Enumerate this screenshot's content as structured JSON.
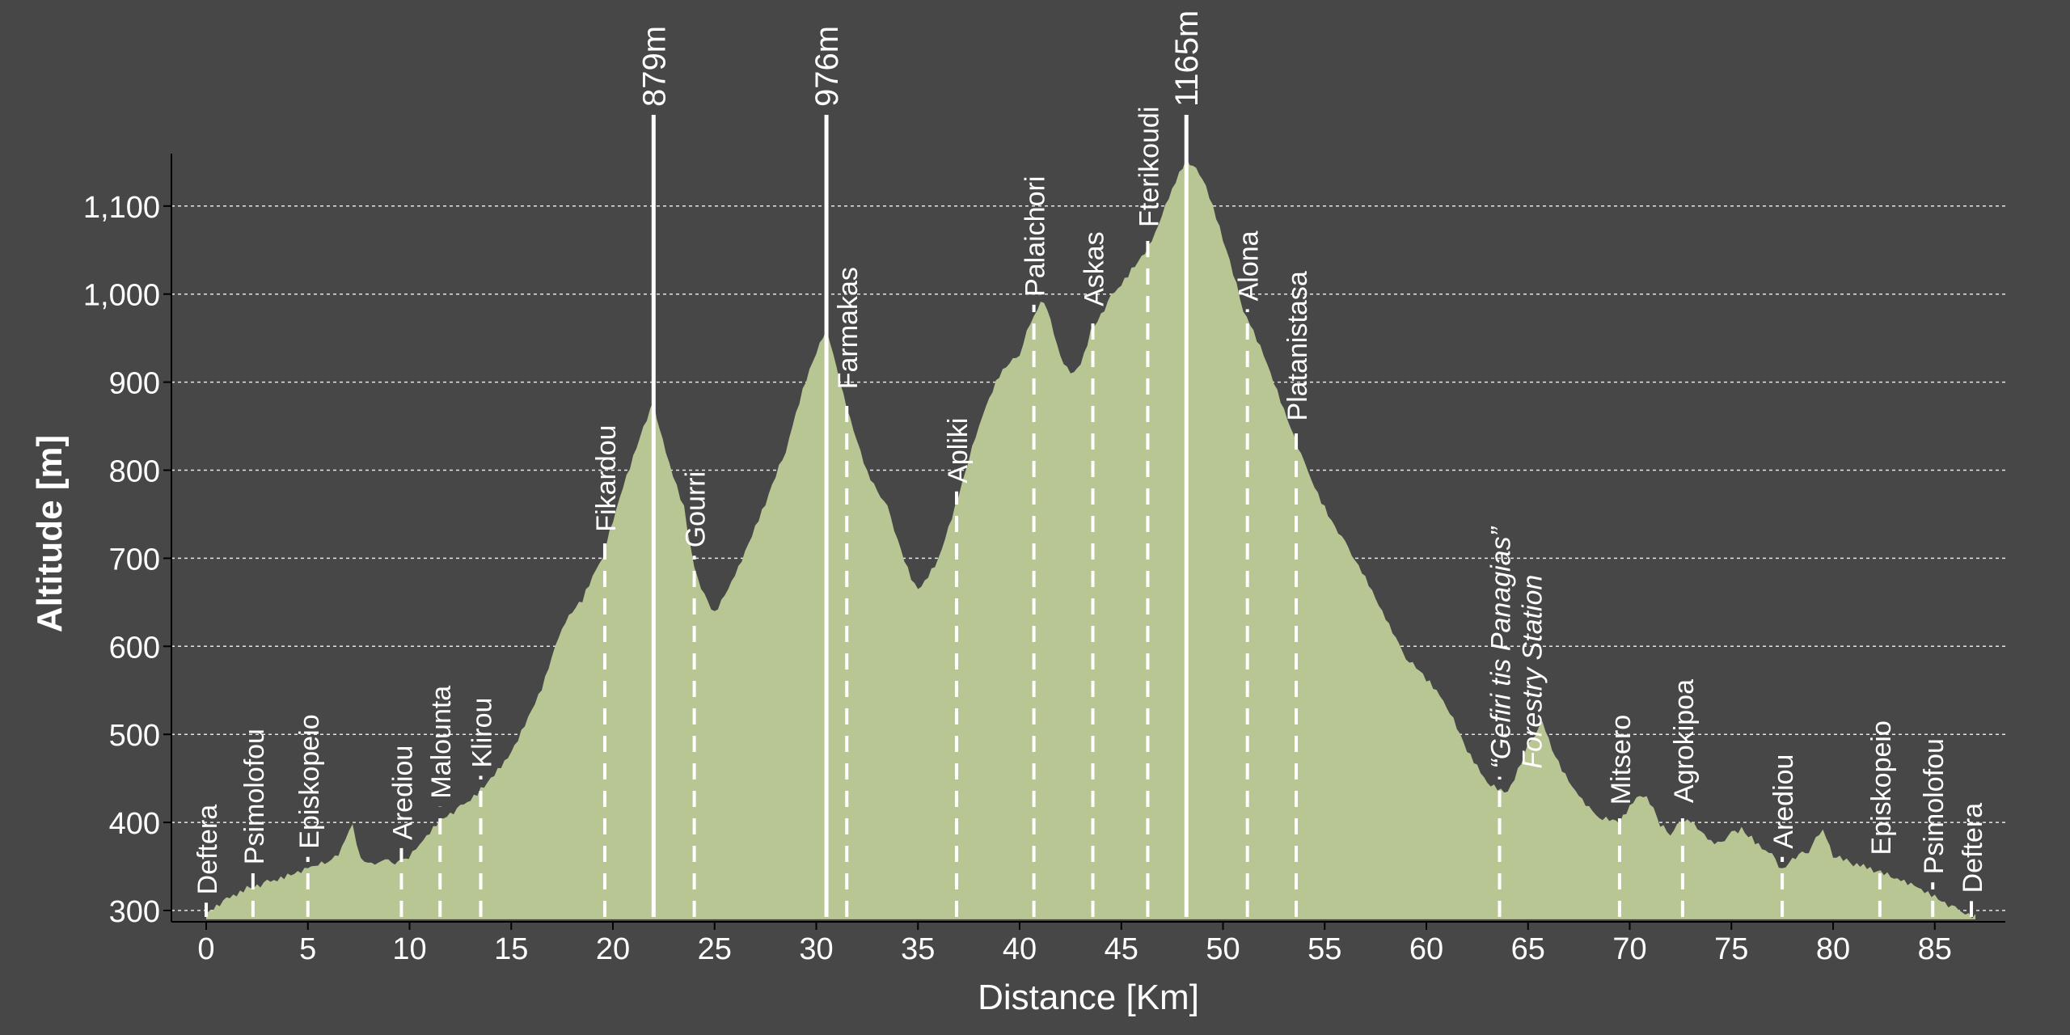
{
  "chart_data": {
    "type": "area",
    "xlabel": "Distance [Km]",
    "ylabel": "Altitude [m]",
    "xlim": [
      -1.5,
      89
    ],
    "ylim": [
      290,
      1160
    ],
    "x_ticks": [
      0,
      5,
      10,
      15,
      20,
      25,
      30,
      35,
      40,
      45,
      50,
      55,
      60,
      65,
      70,
      75,
      80,
      85
    ],
    "x_tick_labels": [
      "0",
      "5",
      "10",
      "15",
      "20",
      "25",
      "30",
      "35",
      "40",
      "45",
      "50",
      "55",
      "60",
      "65",
      "70",
      "75",
      "80",
      "85"
    ],
    "y_ticks": [
      300,
      400,
      500,
      600,
      700,
      800,
      900,
      1000,
      1100
    ],
    "y_tick_labels": [
      "300",
      "400",
      "500",
      "600",
      "700",
      "800",
      "900",
      "1,000",
      "1,100"
    ],
    "grid": "horizontal dotted",
    "colors": {
      "background": "#474747",
      "fill": "#b7c693",
      "grid": "#e6e6e6",
      "marker": "#ffffff"
    },
    "series": [
      {
        "x": [
          0,
          1,
          2,
          3,
          4,
          5,
          6,
          6.5,
          7.2,
          7.6,
          8.3,
          8.8,
          9.6,
          10.5,
          11.5,
          12.5,
          13.5,
          15,
          16.5,
          17.5,
          18.5,
          19.5,
          20.5,
          21.5,
          22,
          22.6,
          23.5,
          24,
          24.5,
          25,
          26,
          27.5,
          28.5,
          29.5,
          30.5,
          31.5,
          32.5,
          33.5,
          34.5,
          35,
          36,
          37,
          38,
          39,
          40,
          40.7,
          41.2,
          42,
          42.5,
          43,
          43.5,
          44.5,
          45.5,
          46.5,
          47.5,
          48.2,
          49,
          50,
          51,
          52,
          53,
          54,
          55,
          56,
          57,
          58,
          59,
          60,
          61,
          62,
          63,
          64,
          65,
          65.7,
          66.5,
          67.5,
          68.5,
          69.5,
          70.5,
          71,
          71.5,
          72,
          72.5,
          73,
          73.5,
          74,
          74.5,
          75,
          75.5,
          76,
          77,
          77.5,
          78,
          78.8,
          79.5,
          80,
          81,
          82,
          83,
          84,
          85,
          86,
          87
        ],
        "y": [
          296,
          315,
          328,
          335,
          342,
          348,
          355,
          362,
          398,
          360,
          352,
          358,
          358,
          375,
          405,
          420,
          440,
          480,
          550,
          620,
          650,
          700,
          780,
          850,
          879,
          820,
          760,
          690,
          660,
          640,
          680,
          760,
          820,
          900,
          960,
          870,
          800,
          760,
          690,
          665,
          700,
          770,
          850,
          905,
          930,
          975,
          990,
          930,
          910,
          920,
          960,
          1000,
          1030,
          1060,
          1120,
          1155,
          1130,
          1060,
          980,
          930,
          870,
          810,
          760,
          720,
          680,
          630,
          585,
          560,
          530,
          480,
          445,
          435,
          490,
          515,
          470,
          430,
          405,
          398,
          430,
          420,
          395,
          385,
          400,
          400,
          390,
          380,
          378,
          390,
          395,
          385,
          365,
          348,
          360,
          365,
          392,
          360,
          350,
          343,
          336,
          328,
          318,
          305,
          296
        ]
      }
    ],
    "waypoints": [
      {
        "km": 0,
        "name": "Deftera"
      },
      {
        "km": 2.3,
        "name": "Psimolofou"
      },
      {
        "km": 5,
        "name": "Episkopeio"
      },
      {
        "km": 9.6,
        "name": "Arediou"
      },
      {
        "km": 11.5,
        "name": "Malounta"
      },
      {
        "km": 13.5,
        "name": "Klirou"
      },
      {
        "km": 19.6,
        "name": "Fikardou"
      },
      {
        "km": 24,
        "name": "Gourri"
      },
      {
        "km": 31.5,
        "name": "Farmakas"
      },
      {
        "km": 36.9,
        "name": "Apliki"
      },
      {
        "km": 40.7,
        "name": "Palaichori"
      },
      {
        "km": 43.6,
        "name": "Askas"
      },
      {
        "km": 46.3,
        "name": "Fterikoudi"
      },
      {
        "km": 51.2,
        "name": "Alona"
      },
      {
        "km": 53.6,
        "name": "Platanistasa"
      },
      {
        "km": 63.6,
        "name": "“Gefiri tis Panagias”",
        "italic": true,
        "second_line": "Forestry Station"
      },
      {
        "km": 69.5,
        "name": "Mitsero"
      },
      {
        "km": 72.6,
        "name": "Agrokipoa"
      },
      {
        "km": 77.5,
        "name": "Arediou"
      },
      {
        "km": 82.3,
        "name": "Episkopeio"
      },
      {
        "km": 84.9,
        "name": "Psimolofou"
      },
      {
        "km": 86.8,
        "name": "Deftera"
      }
    ],
    "peaks": [
      {
        "km": 22,
        "altitude": 879,
        "label": "879m"
      },
      {
        "km": 30.5,
        "altitude": 976,
        "label": "976m"
      },
      {
        "km": 48.2,
        "altitude": 1165,
        "label": "1165m"
      }
    ]
  }
}
